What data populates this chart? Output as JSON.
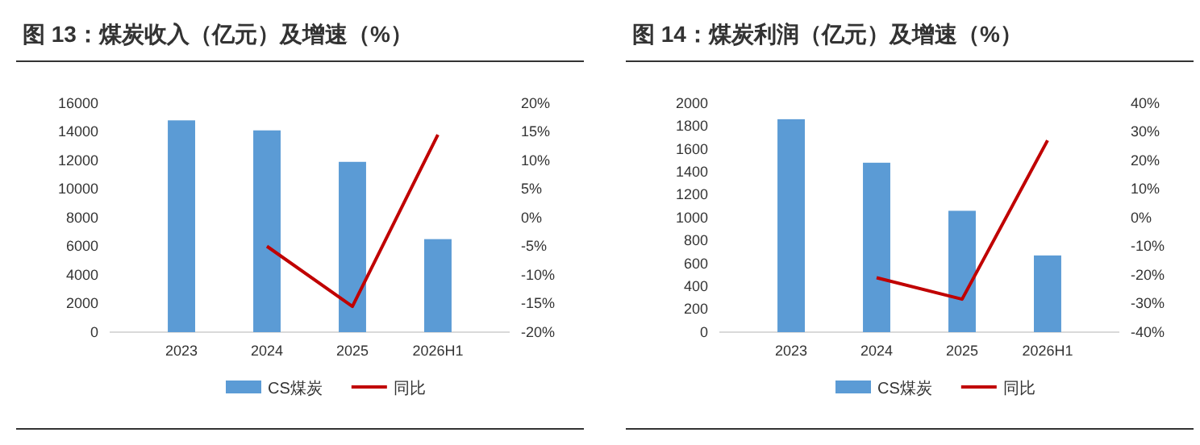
{
  "chart_data": [
    {
      "type": "bar",
      "title": "图 13：煤炭收入（亿元）及增速（%）",
      "categories": [
        "2023",
        "2024",
        "2025",
        "2026H1"
      ],
      "series": [
        {
          "name": "CS煤炭",
          "color": "#5b9bd5",
          "values": [
            14800,
            14100,
            11900,
            6500
          ]
        },
        {
          "name": "同比",
          "type": "line",
          "axis": "y2",
          "color": "#c00000",
          "values": [
            null,
            -5,
            -15.5,
            14.5
          ]
        }
      ],
      "ylim": [
        0,
        16000
      ],
      "yticks": [
        0,
        2000,
        4000,
        6000,
        8000,
        10000,
        12000,
        14000,
        16000
      ],
      "y2lim": [
        -20,
        20
      ],
      "y2ticks": [
        {
          "value": -20,
          "label": "-20%"
        },
        {
          "value": -15,
          "label": "-15%"
        },
        {
          "value": -10,
          "label": "-10%"
        },
        {
          "value": -5,
          "label": "-5%"
        },
        {
          "value": 0,
          "label": "0%"
        },
        {
          "value": 5,
          "label": "5%"
        },
        {
          "value": 10,
          "label": "10%"
        },
        {
          "value": 15,
          "label": "15%"
        },
        {
          "value": 20,
          "label": "20%"
        }
      ],
      "legend": "bottom",
      "grid": false
    },
    {
      "type": "bar",
      "title": "图 14：煤炭利润（亿元）及增速（%）",
      "categories": [
        "2023",
        "2024",
        "2025",
        "2026H1"
      ],
      "series": [
        {
          "name": "CS煤炭",
          "color": "#5b9bd5",
          "values": [
            1860,
            1480,
            1060,
            670
          ]
        },
        {
          "name": "同比",
          "type": "line",
          "axis": "y2",
          "color": "#c00000",
          "values": [
            null,
            -21,
            -28.5,
            27
          ]
        }
      ],
      "ylim": [
        0,
        2000
      ],
      "yticks": [
        0,
        200,
        400,
        600,
        800,
        1000,
        1200,
        1400,
        1600,
        1800,
        2000
      ],
      "y2lim": [
        -40,
        40
      ],
      "y2ticks": [
        {
          "value": -40,
          "label": "-40%"
        },
        {
          "value": -30,
          "label": "-30%"
        },
        {
          "value": -20,
          "label": "-20%"
        },
        {
          "value": -10,
          "label": "-10%"
        },
        {
          "value": 0,
          "label": "0%"
        },
        {
          "value": 10,
          "label": "10%"
        },
        {
          "value": 20,
          "label": "20%"
        },
        {
          "value": 30,
          "label": "30%"
        },
        {
          "value": 40,
          "label": "40%"
        }
      ],
      "legend": "bottom",
      "grid": false
    }
  ]
}
